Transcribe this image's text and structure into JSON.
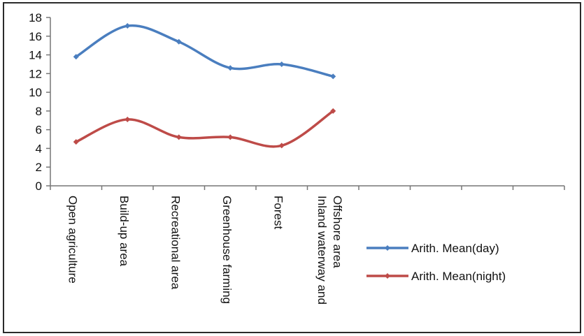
{
  "chart_data": {
    "type": "line",
    "title": "",
    "xlabel": "",
    "ylabel": "",
    "ylim": [
      0,
      18
    ],
    "yticks": [
      0,
      2,
      4,
      6,
      8,
      10,
      12,
      14,
      16,
      18
    ],
    "smooth": true,
    "grid": false,
    "legend_position": "right",
    "categories": [
      [
        "Open agriculture"
      ],
      [
        "Build-up area"
      ],
      [
        "Recreational  area"
      ],
      [
        "Greenhouse farming"
      ],
      [
        "Forest"
      ],
      [
        "Inland waterway and",
        "Offshore area"
      ]
    ],
    "series": [
      {
        "name": "Arith. Mean(day)",
        "color": "#4a7ebf",
        "values": [
          13.8,
          17.1,
          15.4,
          12.6,
          13.0,
          11.7
        ]
      },
      {
        "name": "Arith. Mean(night)",
        "color": "#be4b48",
        "values": [
          4.7,
          7.1,
          5.2,
          5.2,
          4.3,
          8.0
        ]
      }
    ]
  }
}
